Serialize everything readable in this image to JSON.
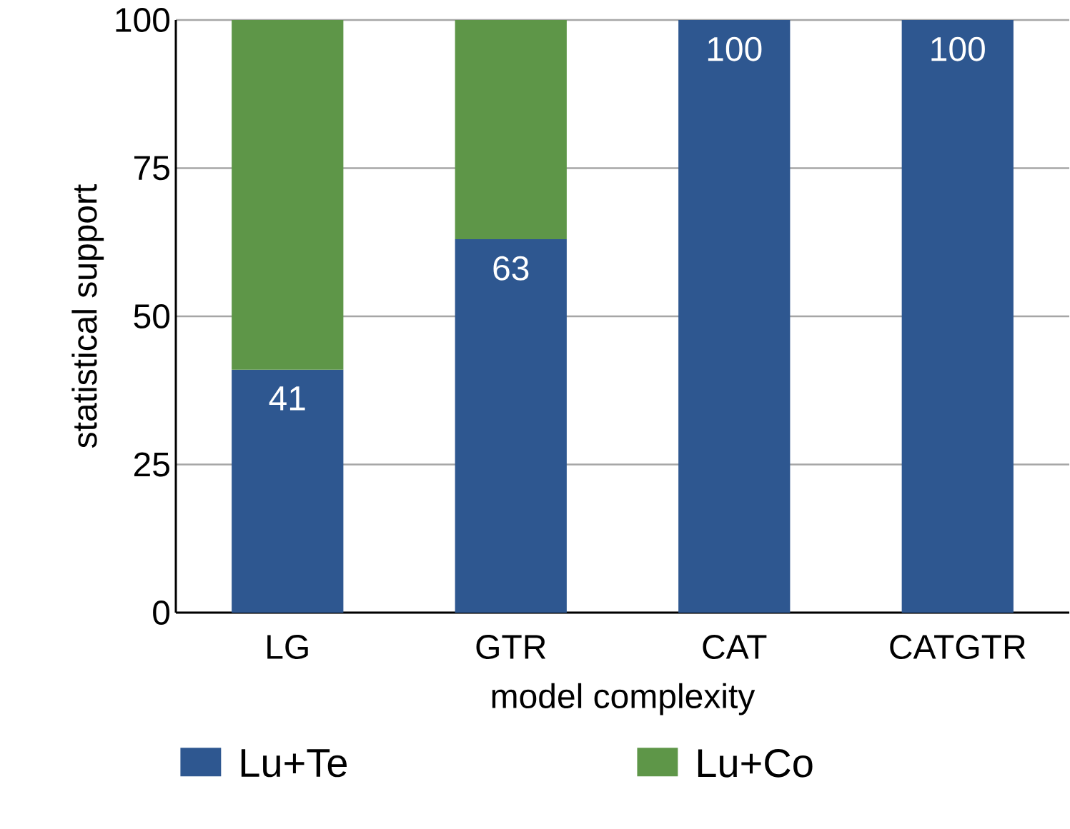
{
  "chart_data": {
    "type": "bar",
    "stacked": true,
    "xlabel": "model complexity",
    "ylabel": "statistical support",
    "categories": [
      "LG",
      "GTR",
      "CAT",
      "CATGTR"
    ],
    "series": [
      {
        "name": "Lu+Te",
        "color": "#2e5790",
        "values": [
          41,
          63,
          100,
          100
        ],
        "value_labels": [
          "41",
          "63",
          "100",
          "100"
        ]
      },
      {
        "name": "Lu+Co",
        "color": "#5e9648",
        "values": [
          59,
          37,
          null,
          null
        ]
      }
    ],
    "ylim": [
      0,
      100
    ],
    "yticks": [
      0,
      25,
      50,
      75,
      100
    ],
    "grid": "y",
    "legend": "bottom"
  }
}
